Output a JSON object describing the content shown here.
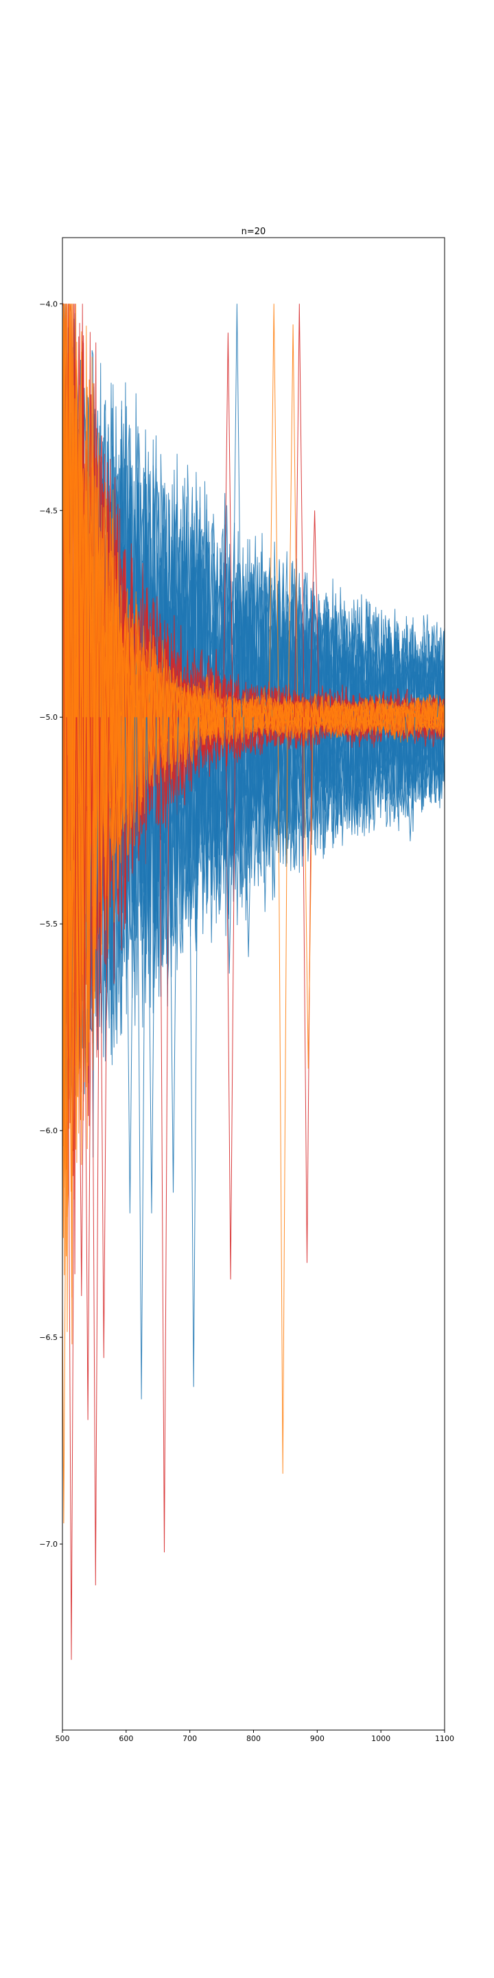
{
  "chart_data": {
    "type": "line",
    "title": "n=20",
    "xlabel": "",
    "ylabel": "",
    "xlim": [
      500,
      1100
    ],
    "ylim": [
      -7.45,
      -3.84
    ],
    "x_ticks": [
      500,
      600,
      700,
      800,
      900,
      1000,
      1100
    ],
    "x_tick_labels": [
      "500",
      "600",
      "700",
      "800",
      "900",
      "1000",
      "1100"
    ],
    "y_ticks": [
      -7.0,
      -6.5,
      -6.0,
      -5.5,
      -5.0,
      -4.5,
      -4.0
    ],
    "y_tick_labels": [
      "−7.0",
      "−6.5",
      "−6.0",
      "−5.5",
      "−5.0",
      "−4.5",
      "−4.0"
    ],
    "grid": false,
    "legend": "none",
    "clip_top": -4.0,
    "center_value": -5.0,
    "colors": {
      "blue": "#1f77b4",
      "orange": "#ff7f0e",
      "red": "#d62728"
    },
    "series": [
      {
        "color": "blue",
        "x_start": 500,
        "x_end": 1100,
        "amp_start": 0.75,
        "decay_x": 300,
        "amp_floor": 0.07,
        "period": 12
      },
      {
        "color": "blue",
        "x_start": 500,
        "x_end": 1100,
        "amp_start": 0.85,
        "decay_x": 310,
        "amp_floor": 0.08,
        "period": 14
      },
      {
        "color": "blue",
        "x_start": 500,
        "x_end": 1100,
        "amp_start": 0.9,
        "decay_x": 290,
        "amp_floor": 0.06,
        "period": 13
      },
      {
        "color": "blue",
        "x_start": 500,
        "x_end": 1100,
        "amp_start": 0.7,
        "decay_x": 320,
        "amp_floor": 0.09,
        "period": 11
      },
      {
        "color": "blue",
        "x_start": 500,
        "x_end": 1100,
        "amp_start": 0.8,
        "decay_x": 300,
        "amp_floor": 0.07,
        "period": 15
      },
      {
        "color": "blue",
        "x_start": 500,
        "x_end": 1100,
        "amp_start": 0.95,
        "decay_x": 280,
        "amp_floor": 0.08,
        "period": 12
      },
      {
        "color": "blue",
        "x_start": 500,
        "x_end": 1100,
        "amp_start": 0.75,
        "decay_x": 330,
        "amp_floor": 0.1,
        "period": 13
      },
      {
        "color": "blue",
        "x_start": 500,
        "x_end": 1100,
        "amp_start": 0.85,
        "decay_x": 305,
        "amp_floor": 0.06,
        "period": 14
      },
      {
        "color": "blue",
        "x_start": 500,
        "x_end": 1100,
        "amp_start": 0.65,
        "decay_x": 315,
        "amp_floor": 0.07,
        "period": 12
      },
      {
        "color": "blue",
        "x_start": 500,
        "x_end": 1100,
        "amp_start": 0.9,
        "decay_x": 295,
        "amp_floor": 0.09,
        "period": 11
      },
      {
        "color": "blue",
        "x_start": 500,
        "x_end": 1100,
        "amp_start": 0.8,
        "decay_x": 300,
        "amp_floor": 0.08,
        "period": 15
      },
      {
        "color": "blue",
        "x_start": 500,
        "x_end": 1100,
        "amp_start": 0.7,
        "decay_x": 325,
        "amp_floor": 0.07,
        "period": 13
      },
      {
        "color": "blue",
        "x_start": 500,
        "x_end": 1100,
        "amp_start": 0.85,
        "decay_x": 285,
        "amp_floor": 0.06,
        "period": 12
      },
      {
        "color": "blue",
        "x_start": 500,
        "x_end": 1100,
        "amp_start": 0.75,
        "decay_x": 310,
        "amp_floor": 0.08,
        "period": 14
      },
      {
        "color": "blue",
        "x_start": 500,
        "x_end": 1100,
        "amp_start": 0.9,
        "decay_x": 300,
        "amp_floor": 0.07,
        "period": 11
      },
      {
        "color": "blue",
        "x_start": 500,
        "x_end": 1100,
        "amp_start": 0.8,
        "decay_x": 320,
        "amp_floor": 0.09,
        "period": 13
      },
      {
        "color": "blue",
        "x_start": 500,
        "x_end": 1100,
        "amp_start": 0.7,
        "decay_x": 290,
        "amp_floor": 0.06,
        "period": 12
      },
      {
        "color": "blue",
        "x_start": 500,
        "x_end": 1100,
        "amp_start": 0.85,
        "decay_x": 305,
        "amp_floor": 0.08,
        "period": 14
      },
      {
        "color": "blue",
        "x_start": 500,
        "x_end": 1100,
        "amp_start": 0.95,
        "decay_x": 295,
        "amp_floor": 0.07,
        "period": 13
      },
      {
        "color": "blue",
        "x_start": 500,
        "x_end": 1100,
        "amp_start": 0.75,
        "decay_x": 315,
        "amp_floor": 0.08,
        "period": 12
      },
      {
        "color": "red",
        "x_start": 500,
        "x_end": 1100,
        "amp_start": 1.4,
        "decay_x": 75,
        "amp_floor": 0.05,
        "period": 10
      },
      {
        "color": "red",
        "x_start": 500,
        "x_end": 1100,
        "amp_start": 1.3,
        "decay_x": 80,
        "amp_floor": 0.05,
        "period": 11
      },
      {
        "color": "red",
        "x_start": 500,
        "x_end": 1100,
        "amp_start": 1.5,
        "decay_x": 70,
        "amp_floor": 0.04,
        "period": 9
      },
      {
        "color": "red",
        "x_start": 500,
        "x_end": 1100,
        "amp_start": 1.2,
        "decay_x": 85,
        "amp_floor": 0.05,
        "period": 10
      },
      {
        "color": "red",
        "x_start": 500,
        "x_end": 1100,
        "amp_start": 1.35,
        "decay_x": 78,
        "amp_floor": 0.06,
        "period": 12
      },
      {
        "color": "red",
        "x_start": 500,
        "x_end": 1100,
        "amp_start": 1.25,
        "decay_x": 82,
        "amp_floor": 0.04,
        "period": 11
      },
      {
        "color": "red",
        "x_start": 500,
        "x_end": 1100,
        "amp_start": 1.45,
        "decay_x": 72,
        "amp_floor": 0.05,
        "period": 10
      },
      {
        "color": "red",
        "x_start": 500,
        "x_end": 1100,
        "amp_start": 1.3,
        "decay_x": 76,
        "amp_floor": 0.05,
        "period": 9
      },
      {
        "color": "red",
        "x_start": 500,
        "x_end": 1100,
        "amp_start": 1.2,
        "decay_x": 88,
        "amp_floor": 0.06,
        "period": 11
      },
      {
        "color": "red",
        "x_start": 500,
        "x_end": 1100,
        "amp_start": 1.4,
        "decay_x": 74,
        "amp_floor": 0.04,
        "period": 12
      },
      {
        "color": "orange",
        "x_start": 500,
        "x_end": 1100,
        "amp_start": 1.6,
        "decay_x": 55,
        "amp_floor": 0.04,
        "period": 9
      },
      {
        "color": "orange",
        "x_start": 500,
        "x_end": 1100,
        "amp_start": 1.5,
        "decay_x": 60,
        "amp_floor": 0.04,
        "period": 10
      },
      {
        "color": "orange",
        "x_start": 500,
        "x_end": 1100,
        "amp_start": 1.7,
        "decay_x": 52,
        "amp_floor": 0.03,
        "period": 8
      },
      {
        "color": "orange",
        "x_start": 500,
        "x_end": 1100,
        "amp_start": 1.45,
        "decay_x": 62,
        "amp_floor": 0.04,
        "period": 9
      },
      {
        "color": "orange",
        "x_start": 500,
        "x_end": 1100,
        "amp_start": 1.55,
        "decay_x": 58,
        "amp_floor": 0.05,
        "period": 10
      },
      {
        "color": "orange",
        "x_start": 500,
        "x_end": 1100,
        "amp_start": 1.65,
        "decay_x": 54,
        "amp_floor": 0.04,
        "period": 11
      },
      {
        "color": "orange",
        "x_start": 500,
        "x_end": 1100,
        "amp_start": 1.5,
        "decay_x": 57,
        "amp_floor": 0.03,
        "period": 9
      },
      {
        "color": "orange",
        "x_start": 500,
        "x_end": 1100,
        "amp_start": 1.6,
        "decay_x": 56,
        "amp_floor": 0.04,
        "period": 8
      },
      {
        "color": "orange",
        "x_start": 500,
        "x_end": 1100,
        "amp_start": 1.4,
        "decay_x": 65,
        "amp_floor": 0.05,
        "period": 10
      },
      {
        "color": "orange",
        "x_start": 500,
        "x_end": 1100,
        "amp_start": 1.55,
        "decay_x": 59,
        "amp_floor": 0.04,
        "period": 9
      }
    ],
    "spikes": [
      {
        "color": "red",
        "x": 514,
        "y": -7.28
      },
      {
        "color": "red",
        "x": 552,
        "y": -7.1
      },
      {
        "color": "red",
        "x": 660,
        "y": -7.02
      },
      {
        "color": "red",
        "x": 764,
        "y": -6.36
      },
      {
        "color": "red",
        "x": 884,
        "y": -6.32
      },
      {
        "color": "red",
        "x": 540,
        "y": -6.7
      },
      {
        "color": "red",
        "x": 565,
        "y": -6.55
      },
      {
        "color": "red",
        "x": 530,
        "y": -6.4
      },
      {
        "color": "red",
        "x": 760,
        "y": -4.07
      },
      {
        "color": "red",
        "x": 872,
        "y": -4.0
      },
      {
        "color": "red",
        "x": 896,
        "y": -4.5
      },
      {
        "color": "orange",
        "x": 846,
        "y": -6.83
      },
      {
        "color": "orange",
        "x": 502,
        "y": -6.95
      },
      {
        "color": "orange",
        "x": 832,
        "y": -4.0
      },
      {
        "color": "orange",
        "x": 862,
        "y": -4.05
      },
      {
        "color": "orange",
        "x": 886,
        "y": -5.85
      },
      {
        "color": "blue",
        "x": 624,
        "y": -6.65
      },
      {
        "color": "blue",
        "x": 706,
        "y": -6.62
      },
      {
        "color": "blue",
        "x": 606,
        "y": -6.2
      },
      {
        "color": "blue",
        "x": 640,
        "y": -6.2
      },
      {
        "color": "blue",
        "x": 674,
        "y": -6.15
      },
      {
        "color": "blue",
        "x": 774,
        "y": -4.0
      },
      {
        "color": "blue",
        "x": 762,
        "y": -5.62
      },
      {
        "color": "blue",
        "x": 792,
        "y": -5.58
      },
      {
        "color": "blue",
        "x": 1046,
        "y": -5.3
      },
      {
        "color": "blue",
        "x": 1096,
        "y": -4.85
      }
    ]
  }
}
